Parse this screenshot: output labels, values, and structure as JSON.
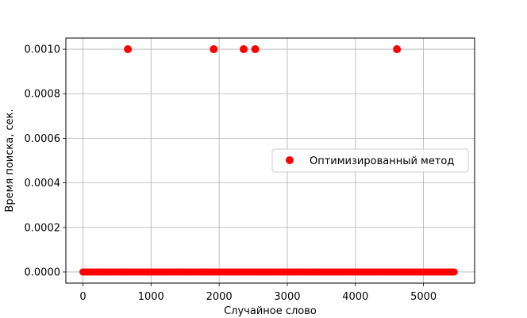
{
  "chart_data": {
    "type": "scatter",
    "title": "",
    "xlabel": "Случайное слово",
    "ylabel": "Время поиска, сек.",
    "xlim": [
      -250,
      5750
    ],
    "ylim": [
      -5e-05,
      0.00105
    ],
    "x_ticks": [
      0,
      1000,
      2000,
      3000,
      4000,
      5000
    ],
    "x_tick_labels": [
      "0",
      "1000",
      "2000",
      "3000",
      "4000",
      "5000"
    ],
    "y_ticks": [
      0.0,
      0.0002,
      0.0004,
      0.0006,
      0.0008,
      0.001
    ],
    "y_tick_labels": [
      "0.0000",
      "0.0002",
      "0.0004",
      "0.0006",
      "0.0008",
      "0.0010"
    ],
    "grid": true,
    "legend_placement": "center-right",
    "series": [
      {
        "name": "Оптимизированный метод",
        "color": "#ff0000",
        "marker": "circle",
        "baseline": {
          "y": 0.0,
          "x_from": 0,
          "x_to": 5470,
          "x_step": 25
        },
        "points": [
          {
            "x": 660,
            "y": 0.001
          },
          {
            "x": 1920,
            "y": 0.001
          },
          {
            "x": 2360,
            "y": 0.001
          },
          {
            "x": 2530,
            "y": 0.001
          },
          {
            "x": 4610,
            "y": 0.001
          }
        ]
      }
    ]
  }
}
